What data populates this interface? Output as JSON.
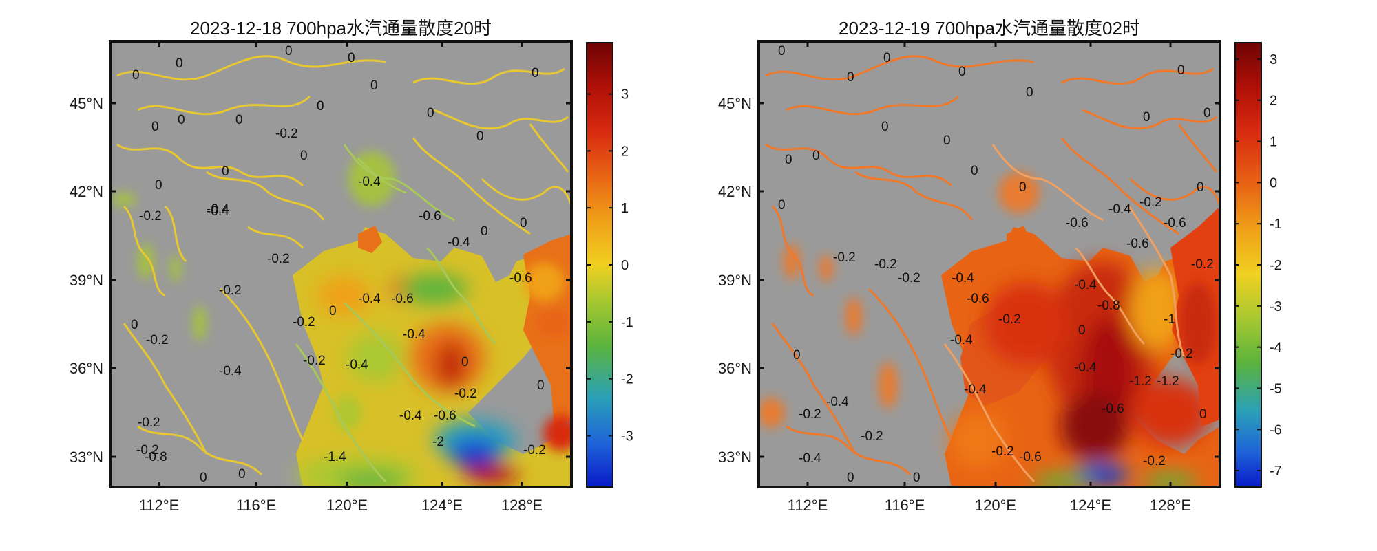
{
  "panels": [
    {
      "title": "2023-12-18 700hpa水汽通量散度20时",
      "contour_color": "#e8c830",
      "contour_color_alt": "#a8c858",
      "lat_labels": [
        "45°N",
        "42°N",
        "39°N",
        "36°N",
        "33°N"
      ],
      "lon_labels": [
        "112°E",
        "116°E",
        "120°E",
        "124°E",
        "128°E"
      ],
      "colorbar": {
        "ticks": [
          "3",
          "2",
          "1",
          "0",
          "-1",
          "-2",
          "-3"
        ],
        "min": -3.9,
        "max": 3.9
      },
      "contour_labels": [
        "0",
        "0",
        "0",
        "0",
        "0",
        "0",
        "0",
        "0",
        "0",
        "0",
        "0",
        "0",
        "0",
        "0",
        "0",
        "0",
        "-0.2",
        "-0.4",
        "-0.2",
        "-0.6",
        "-0.2",
        "-0.2",
        "-0.4",
        "-0.2",
        "-0.2",
        "-0.4",
        "-0.6",
        "-0.4",
        "-0.2",
        "-0.4",
        "-0.6",
        "-0.4",
        "-2",
        "-0.2",
        "-0.4",
        "-0.2",
        "-0.2",
        "-0.8",
        "-1.4",
        "-0.2",
        "-0.4",
        "-0.6",
        "-0.4",
        "0",
        "0",
        "0",
        "0",
        "0",
        "0",
        "0"
      ]
    },
    {
      "title": "2023-12-19 700hpa水汽通量散度02时",
      "contour_color": "#f07828",
      "contour_color_alt": "#f2a060",
      "lat_labels": [
        "45°N",
        "42°N",
        "39°N",
        "36°N",
        "33°N"
      ],
      "lon_labels": [
        "112°E",
        "116°E",
        "120°E",
        "124°E",
        "128°E"
      ],
      "colorbar": {
        "ticks": [
          "3",
          "2",
          "1",
          "0",
          "-1",
          "-2",
          "-3",
          "-4",
          "-5",
          "-6",
          "-7"
        ],
        "min": -7.4,
        "max": 3.4
      },
      "contour_labels": [
        "0",
        "0",
        "0",
        "0",
        "0",
        "0",
        "0",
        "0",
        "0",
        "0",
        "0",
        "0",
        "0",
        "0",
        "0",
        "0",
        "-0.2",
        "-0.2",
        "-0.4",
        "-0.2",
        "-0.6",
        "-0.4",
        "-0.6",
        "-0.2",
        "-0.4",
        "-1.2",
        "-0.6",
        "-0.8",
        "-0.4",
        "-1",
        "-0.6",
        "-0.2",
        "-1.2",
        "-0.4",
        "-0.2",
        "-0.2",
        "-0.4",
        "-0.2",
        "-0.6",
        "-0.2",
        "-0.4",
        "-0.2",
        "-0.4",
        "-0.6",
        "-0.2",
        "0",
        "0",
        "0",
        "0",
        "0"
      ]
    }
  ]
}
